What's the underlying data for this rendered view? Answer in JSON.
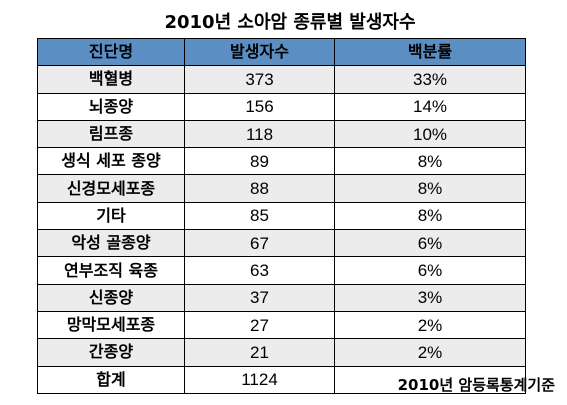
{
  "title": "2010년 소아암 종류별 발생자수",
  "table": {
    "headers": [
      "진단명",
      "발생자수",
      "백분률"
    ],
    "rows": [
      [
        "백혈병",
        "373",
        "33%"
      ],
      [
        "뇌종양",
        "156",
        "14%"
      ],
      [
        "림프종",
        "118",
        "10%"
      ],
      [
        "생식 세포 종양",
        "89",
        "8%"
      ],
      [
        "신경모세포종",
        "88",
        "8%"
      ],
      [
        "기타",
        "85",
        "8%"
      ],
      [
        "악성 골종양",
        "67",
        "6%"
      ],
      [
        "연부조직 육종",
        "63",
        "6%"
      ],
      [
        "신종양",
        "37",
        "3%"
      ],
      [
        "망막모세포종",
        "27",
        "2%"
      ],
      [
        "간종양",
        "21",
        "2%"
      ],
      [
        "합계",
        "1124",
        ""
      ]
    ]
  },
  "source": "2010년 암등록통계기준",
  "colors": {
    "header_bg": "#5b8fc4",
    "row_shade": "#ececec"
  }
}
